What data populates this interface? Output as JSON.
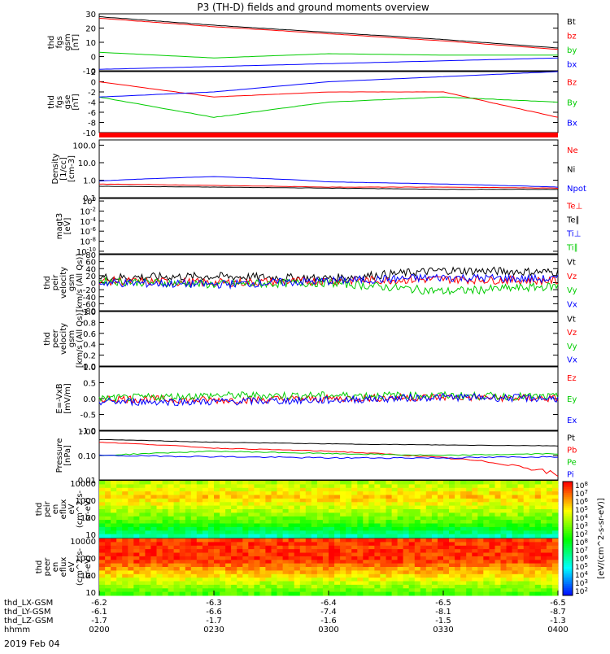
{
  "title": "P3 (TH-D) fields and ground moments overview",
  "date_label": "2019 Feb 04",
  "colors": {
    "black": "#000000",
    "red": "#ff0000",
    "green": "#00cc00",
    "blue": "#0000ff"
  },
  "ephemeris": {
    "rows": [
      {
        "label": "thd_LX-GSM",
        "values": [
          "-6.2",
          "-6.3",
          "-6.4",
          "-6.5",
          "-6.5"
        ]
      },
      {
        "label": "thd_LY-GSM",
        "values": [
          "-6.1",
          "-6.6",
          "-7.4",
          "-8.1",
          "-8.7"
        ]
      },
      {
        "label": "thd_LZ-GSM",
        "values": [
          "-1.7",
          "-1.7",
          "-1.6",
          "-1.5",
          "-1.3"
        ]
      },
      {
        "label": "hhmm",
        "values": [
          "0200",
          "0230",
          "0300",
          "0330",
          "0400"
        ]
      }
    ]
  },
  "colorbar": {
    "labels": [
      "10^8",
      "10^7",
      "10^6",
      "10^5",
      "10^4",
      "10^3",
      "10^2",
      "10^8",
      "10^7",
      "10^6",
      "10^5",
      "10^4",
      "10^3",
      "10^2"
    ],
    "units": "[eV/(cm^2-s-sr-eV)]",
    "units2": "[eV/(cm^2-s-sr-eV)] (All Qs)]"
  },
  "chart_data": [
    {
      "type": "line",
      "id": "fgs_gsm",
      "ylabel_lines": [
        "thd",
        "fgs",
        "gsm",
        "[nT]"
      ],
      "ylim": [
        -10,
        30
      ],
      "yticks": [
        "30",
        "20",
        "10",
        "0",
        "-10"
      ],
      "ytick_values": [
        30,
        20,
        10,
        0,
        -10
      ],
      "x": [
        "0200",
        "0230",
        "0300",
        "0330",
        "0400"
      ],
      "series": [
        {
          "name": "Bt",
          "color": "#000000",
          "values": [
            28,
            22,
            17,
            12,
            6
          ]
        },
        {
          "name": "bz",
          "color": "#ff0000",
          "values": [
            27,
            21,
            16,
            11,
            5
          ]
        },
        {
          "name": "by",
          "color": "#00cc00",
          "values": [
            3,
            -1,
            2,
            1,
            1
          ]
        },
        {
          "name": "bx",
          "color": "#0000ff",
          "values": [
            -9,
            -7,
            -5,
            -3,
            -1
          ]
        }
      ]
    },
    {
      "type": "line",
      "id": "fgs_dsl",
      "ylabel_lines": [
        "thd",
        "fgs",
        "gse",
        "[nT]"
      ],
      "ylim": [
        -10,
        2
      ],
      "yticks": [
        "2",
        "0",
        "-2",
        "-4",
        "-6",
        "-8",
        "-10"
      ],
      "ytick_values": [
        2,
        0,
        -2,
        -4,
        -6,
        -8,
        -10
      ],
      "x": [
        "0200",
        "0230",
        "0300",
        "0330",
        "0400"
      ],
      "series": [
        {
          "name": "Bz",
          "color": "#ff0000",
          "values": [
            0,
            -3,
            -2,
            -2,
            -7
          ]
        },
        {
          "name": "By",
          "color": "#00cc00",
          "values": [
            -3,
            -7,
            -4,
            -3,
            -4
          ]
        },
        {
          "name": "Bx",
          "color": "#0000ff",
          "values": [
            -3,
            -2,
            0,
            1,
            2
          ]
        }
      ]
    },
    {
      "type": "line",
      "id": "density",
      "ylabel_lines": [
        "Density",
        "[1/cc]",
        "[cm-3]"
      ],
      "scale": "log",
      "ylim": [
        0.1,
        200
      ],
      "yticks": [
        "100.0",
        "10.0",
        "1.0",
        "0.1"
      ],
      "ytick_values": [
        100,
        10,
        1,
        0.1
      ],
      "x": [
        "0200",
        "0230",
        "0300",
        "0330",
        "0400"
      ],
      "series": [
        {
          "name": "Ne",
          "color": "#ff0000",
          "values": [
            0.6,
            0.5,
            0.4,
            0.4,
            0.35
          ]
        },
        {
          "name": "Ni",
          "color": "#000000",
          "values": [
            0.45,
            0.4,
            0.35,
            0.3,
            0.3
          ]
        },
        {
          "name": "Npot",
          "color": "#0000ff",
          "values": [
            0.9,
            1.6,
            0.8,
            0.6,
            0.4
          ]
        }
      ]
    },
    {
      "type": "line",
      "id": "temperature",
      "ylabel_lines": [
        "magt3",
        "[eV]"
      ],
      "scale": "log",
      "yticks": [
        "10^0",
        "10^-2",
        "10^-4",
        "10^-6",
        "10^-8",
        "10^-10"
      ],
      "ytick_values": [
        0,
        -2,
        -4,
        -6,
        -8,
        -10
      ],
      "series": [
        {
          "name": "Te⊥",
          "color": "#ff0000"
        },
        {
          "name": "Te∥",
          "color": "#000000"
        },
        {
          "name": "Ti⊥",
          "color": "#0000ff"
        },
        {
          "name": "Ti∥",
          "color": "#00cc00"
        }
      ]
    },
    {
      "type": "line",
      "id": "peir_velocity",
      "ylabel_lines": [
        "thd",
        "peir",
        "velocity",
        "gsm",
        "[km/s (All Qs)]"
      ],
      "ylim": [
        -80,
        80
      ],
      "yticks": [
        "80",
        "60",
        "40",
        "20",
        "0",
        "-20",
        "-40",
        "-60",
        "-80"
      ],
      "ytick_values": [
        80,
        60,
        40,
        20,
        0,
        -20,
        -40,
        -60,
        -80
      ],
      "x": [
        "0200",
        "0230",
        "0300",
        "0330",
        "0400"
      ],
      "series": [
        {
          "name": "Vt",
          "color": "#000000",
          "values": [
            15,
            18,
            12,
            35,
            30
          ]
        },
        {
          "name": "Vz",
          "color": "#ff0000",
          "values": [
            5,
            0,
            5,
            10,
            5
          ]
        },
        {
          "name": "Vy",
          "color": "#00cc00",
          "values": [
            5,
            -5,
            0,
            -25,
            -10
          ]
        },
        {
          "name": "Vx",
          "color": "#0000ff",
          "values": [
            0,
            -5,
            5,
            15,
            10
          ]
        }
      ]
    },
    {
      "type": "line",
      "id": "peer_velocity",
      "ylabel_lines": [
        "thd",
        "peer",
        "velocity",
        "gsm",
        "[km/s (All Qs)]"
      ],
      "ylim": [
        0,
        1
      ],
      "yticks": [
        "1.0",
        "0.8",
        "0.6",
        "0.4",
        "0.2",
        "0.0"
      ],
      "ytick_values": [
        1,
        0.8,
        0.6,
        0.4,
        0.2,
        0
      ],
      "series": [
        {
          "name": "Vt",
          "color": "#000000"
        },
        {
          "name": "Vz",
          "color": "#ff0000"
        },
        {
          "name": "Vy",
          "color": "#00cc00"
        },
        {
          "name": "Vx",
          "color": "#0000ff"
        }
      ]
    },
    {
      "type": "line",
      "id": "e_field",
      "ylabel_lines": [
        "E=-VxB",
        "[mV/m]"
      ],
      "ylim": [
        -1,
        1
      ],
      "yticks": [
        "1.0",
        "0.5",
        "0.0",
        "-0.5",
        "-1.0"
      ],
      "ytick_values": [
        1,
        0.5,
        0,
        -0.5,
        -1
      ],
      "x": [
        "0200",
        "0230",
        "0300",
        "0330",
        "0400"
      ],
      "series": [
        {
          "name": "Ez",
          "color": "#ff0000",
          "values": [
            0,
            -0.05,
            0,
            0.05,
            0
          ]
        },
        {
          "name": "Ey",
          "color": "#00cc00",
          "values": [
            0,
            0.1,
            0.1,
            0.1,
            0.05
          ]
        },
        {
          "name": "Ex",
          "color": "#0000ff",
          "values": [
            -0.1,
            -0.1,
            -0.05,
            0.05,
            0
          ]
        }
      ]
    },
    {
      "type": "line",
      "id": "pressure",
      "ylabel_lines": [
        "Pressure",
        "[nPa]"
      ],
      "scale": "log",
      "ylim": [
        0.01,
        1
      ],
      "yticks": [
        "1.00",
        "0.10",
        "0.01"
      ],
      "ytick_values": [
        1,
        0.1,
        0.01
      ],
      "x": [
        "0200",
        "0230",
        "0300",
        "0330",
        "0400"
      ],
      "series": [
        {
          "name": "Pt",
          "color": "#000000",
          "values": [
            0.45,
            0.35,
            0.3,
            0.27,
            0.25
          ]
        },
        {
          "name": "Pb",
          "color": "#ff0000",
          "values": [
            0.35,
            0.2,
            0.15,
            0.08,
            0.015
          ]
        },
        {
          "name": "Pe",
          "color": "#00cc00",
          "values": [
            0.1,
            0.15,
            0.12,
            0.1,
            0.12
          ]
        },
        {
          "name": "Pi",
          "color": "#0000ff",
          "values": [
            0.1,
            0.09,
            0.08,
            0.08,
            0.09
          ]
        }
      ]
    },
    {
      "type": "heatmap",
      "id": "peir_spec",
      "ylabel_lines": [
        "thd",
        "peir",
        "en",
        "eflux",
        "eV",
        "(cm^2-s-",
        "sr-eV)"
      ],
      "scale": "log",
      "yticks": [
        "10000",
        "1000",
        "100",
        "10"
      ],
      "ytick_values": [
        10000,
        1000,
        100,
        10
      ]
    },
    {
      "type": "heatmap",
      "id": "peer_spec",
      "ylabel_lines": [
        "thd",
        "peer",
        "en",
        "eflux",
        "eV",
        "(cm^2-s-",
        "sr-eV)"
      ],
      "scale": "log",
      "yticks": [
        "10000",
        "1000",
        "100",
        "10"
      ],
      "ytick_values": [
        10000,
        1000,
        100,
        10
      ]
    }
  ]
}
